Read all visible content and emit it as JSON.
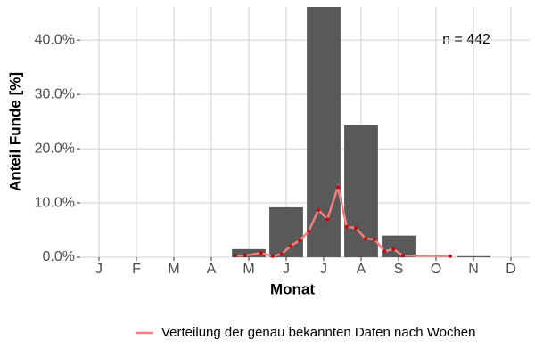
{
  "chart_data": {
    "type": "bar",
    "x_label": "Monat",
    "y_label": "Anteil Funde [%]",
    "annotation": "n = 442",
    "categories": [
      "J",
      "F",
      "M",
      "A",
      "M",
      "J",
      "J",
      "A",
      "S",
      "O",
      "N",
      "D"
    ],
    "values": [
      0,
      0,
      0,
      0,
      1.5,
      9.2,
      46.1,
      24.3,
      4.0,
      0,
      0.2,
      0
    ],
    "color": "#595959",
    "ylim": [
      0,
      46.1
    ],
    "yticks": [
      {
        "value": 0,
        "label": "0.0%"
      },
      {
        "value": 10,
        "label": "10.0%"
      },
      {
        "value": 20,
        "label": "20.0%"
      },
      {
        "value": 30,
        "label": "30.0%"
      },
      {
        "value": 40,
        "label": "40.0%"
      }
    ],
    "grid": true,
    "lines": [
      {
        "name": "Verteilung der genau bekannten Daten nach Wochen",
        "color": "#f08080",
        "point_color": "#cc0000",
        "x": [
          4.64,
          4.9,
          5.33,
          5.64,
          5.88,
          6.12,
          6.36,
          6.6,
          6.86,
          7.1,
          7.38,
          7.62,
          7.86,
          8.12,
          8.36,
          8.62,
          8.86,
          9.12,
          10.38
        ],
        "values": [
          0.3,
          0.3,
          0.8,
          0.2,
          0.6,
          2.1,
          3.1,
          4.8,
          8.7,
          7.0,
          12.9,
          5.6,
          5.4,
          3.4,
          3.3,
          1.1,
          1.5,
          0.3,
          0.2
        ]
      }
    ],
    "legend_position": "bottom"
  }
}
